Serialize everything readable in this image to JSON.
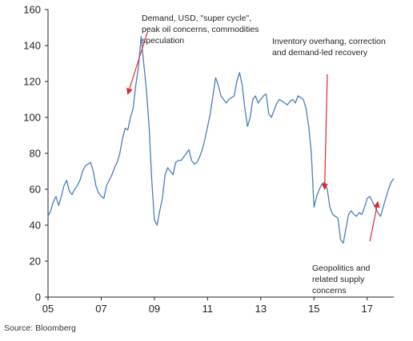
{
  "chart_data": {
    "type": "line",
    "title": "",
    "xlabel": "",
    "ylabel": "",
    "xlim": [
      2005.0,
      2018.0
    ],
    "ylim": [
      0,
      160
    ],
    "xticks": [
      {
        "value": 2005,
        "label": "05"
      },
      {
        "value": 2007,
        "label": "07"
      },
      {
        "value": 2009,
        "label": "09"
      },
      {
        "value": 2011,
        "label": "11"
      },
      {
        "value": 2013,
        "label": "13"
      },
      {
        "value": 2015,
        "label": "15"
      },
      {
        "value": 2017,
        "label": "17"
      }
    ],
    "yticks": [
      {
        "value": 0,
        "label": "0"
      },
      {
        "value": 20,
        "label": "20"
      },
      {
        "value": 40,
        "label": "40"
      },
      {
        "value": 60,
        "label": "60"
      },
      {
        "value": 80,
        "label": "80"
      },
      {
        "value": 100,
        "label": "100"
      },
      {
        "value": 120,
        "label": "120"
      },
      {
        "value": 140,
        "label": "140"
      },
      {
        "value": 160,
        "label": "160"
      }
    ],
    "grid": false,
    "line_color": "#4a7dbb",
    "series": [
      {
        "name": "",
        "x": [
          2005.0,
          2005.1,
          2005.2,
          2005.3,
          2005.4,
          2005.5,
          2005.6,
          2005.7,
          2005.8,
          2005.9,
          2006.0,
          2006.1,
          2006.2,
          2006.3,
          2006.4,
          2006.5,
          2006.6,
          2006.7,
          2006.8,
          2006.9,
          2007.0,
          2007.1,
          2007.2,
          2007.3,
          2007.4,
          2007.5,
          2007.6,
          2007.7,
          2007.8,
          2007.9,
          2008.0,
          2008.1,
          2008.2,
          2008.3,
          2008.4,
          2008.5,
          2008.6,
          2008.7,
          2008.8,
          2008.9,
          2009.0,
          2009.1,
          2009.2,
          2009.3,
          2009.4,
          2009.5,
          2009.6,
          2009.7,
          2009.8,
          2009.9,
          2010.0,
          2010.1,
          2010.2,
          2010.3,
          2010.4,
          2010.5,
          2010.6,
          2010.7,
          2010.8,
          2010.9,
          2011.0,
          2011.1,
          2011.2,
          2011.3,
          2011.4,
          2011.5,
          2011.6,
          2011.7,
          2011.8,
          2011.9,
          2012.0,
          2012.1,
          2012.2,
          2012.3,
          2012.4,
          2012.5,
          2012.6,
          2012.7,
          2012.8,
          2012.9,
          2013.0,
          2013.1,
          2013.2,
          2013.3,
          2013.4,
          2013.5,
          2013.6,
          2013.7,
          2013.8,
          2013.9,
          2014.0,
          2014.1,
          2014.2,
          2014.3,
          2014.4,
          2014.5,
          2014.6,
          2014.7,
          2014.8,
          2014.9,
          2015.0,
          2015.1,
          2015.2,
          2015.3,
          2015.4,
          2015.5,
          2015.6,
          2015.7,
          2015.8,
          2015.9,
          2016.0,
          2016.1,
          2016.2,
          2016.3,
          2016.4,
          2016.5,
          2016.6,
          2016.7,
          2016.8,
          2016.9,
          2017.0,
          2017.1,
          2017.2,
          2017.3,
          2017.4,
          2017.5,
          2017.6,
          2017.7,
          2017.8,
          2017.9,
          2018.0
        ],
        "y": [
          45,
          48,
          53,
          56,
          51,
          56,
          62,
          65,
          59,
          57,
          60,
          62,
          65,
          70,
          73,
          74,
          75,
          70,
          62,
          58,
          56,
          55,
          62,
          65,
          68,
          72,
          75,
          80,
          88,
          94,
          93,
          100,
          105,
          118,
          128,
          145,
          130,
          115,
          95,
          65,
          43,
          40,
          48,
          55,
          68,
          72,
          70,
          68,
          75,
          76,
          76,
          78,
          80,
          82,
          76,
          74,
          75,
          78,
          82,
          88,
          95,
          102,
          112,
          122,
          118,
          112,
          110,
          108,
          110,
          111,
          112,
          120,
          125,
          118,
          105,
          95,
          100,
          110,
          112,
          108,
          110,
          112,
          113,
          102,
          100,
          104,
          108,
          110,
          109,
          108,
          107,
          109,
          110,
          108,
          112,
          111,
          110,
          105,
          95,
          80,
          50,
          56,
          60,
          63,
          64,
          60,
          50,
          46,
          45,
          44,
          32,
          30,
          38,
          46,
          48,
          46,
          45,
          47,
          46,
          50,
          55,
          56,
          53,
          50,
          47,
          45,
          50,
          55,
          60,
          64,
          66
        ]
      }
    ],
    "annotations": [
      {
        "lines": [
          "Demand, USD, \"super cycle\",",
          "peak oil concerns, commodities",
          "speculation"
        ],
        "arrow_from": [
          2008.75,
          148
        ],
        "arrow_to": [
          2008.0,
          113
        ]
      },
      {
        "lines": [
          "Inventory overhang, correction",
          "and demand-led recovery"
        ],
        "arrow_from": [
          2015.5,
          124
        ],
        "arrow_to": [
          2015.4,
          60
        ]
      },
      {
        "lines": [
          "Geopolitics and",
          "related supply",
          "concerns"
        ],
        "arrow_from": [
          2017.1,
          31
        ],
        "arrow_to": [
          2017.4,
          53
        ]
      }
    ]
  },
  "source": "Source: Bloomberg"
}
